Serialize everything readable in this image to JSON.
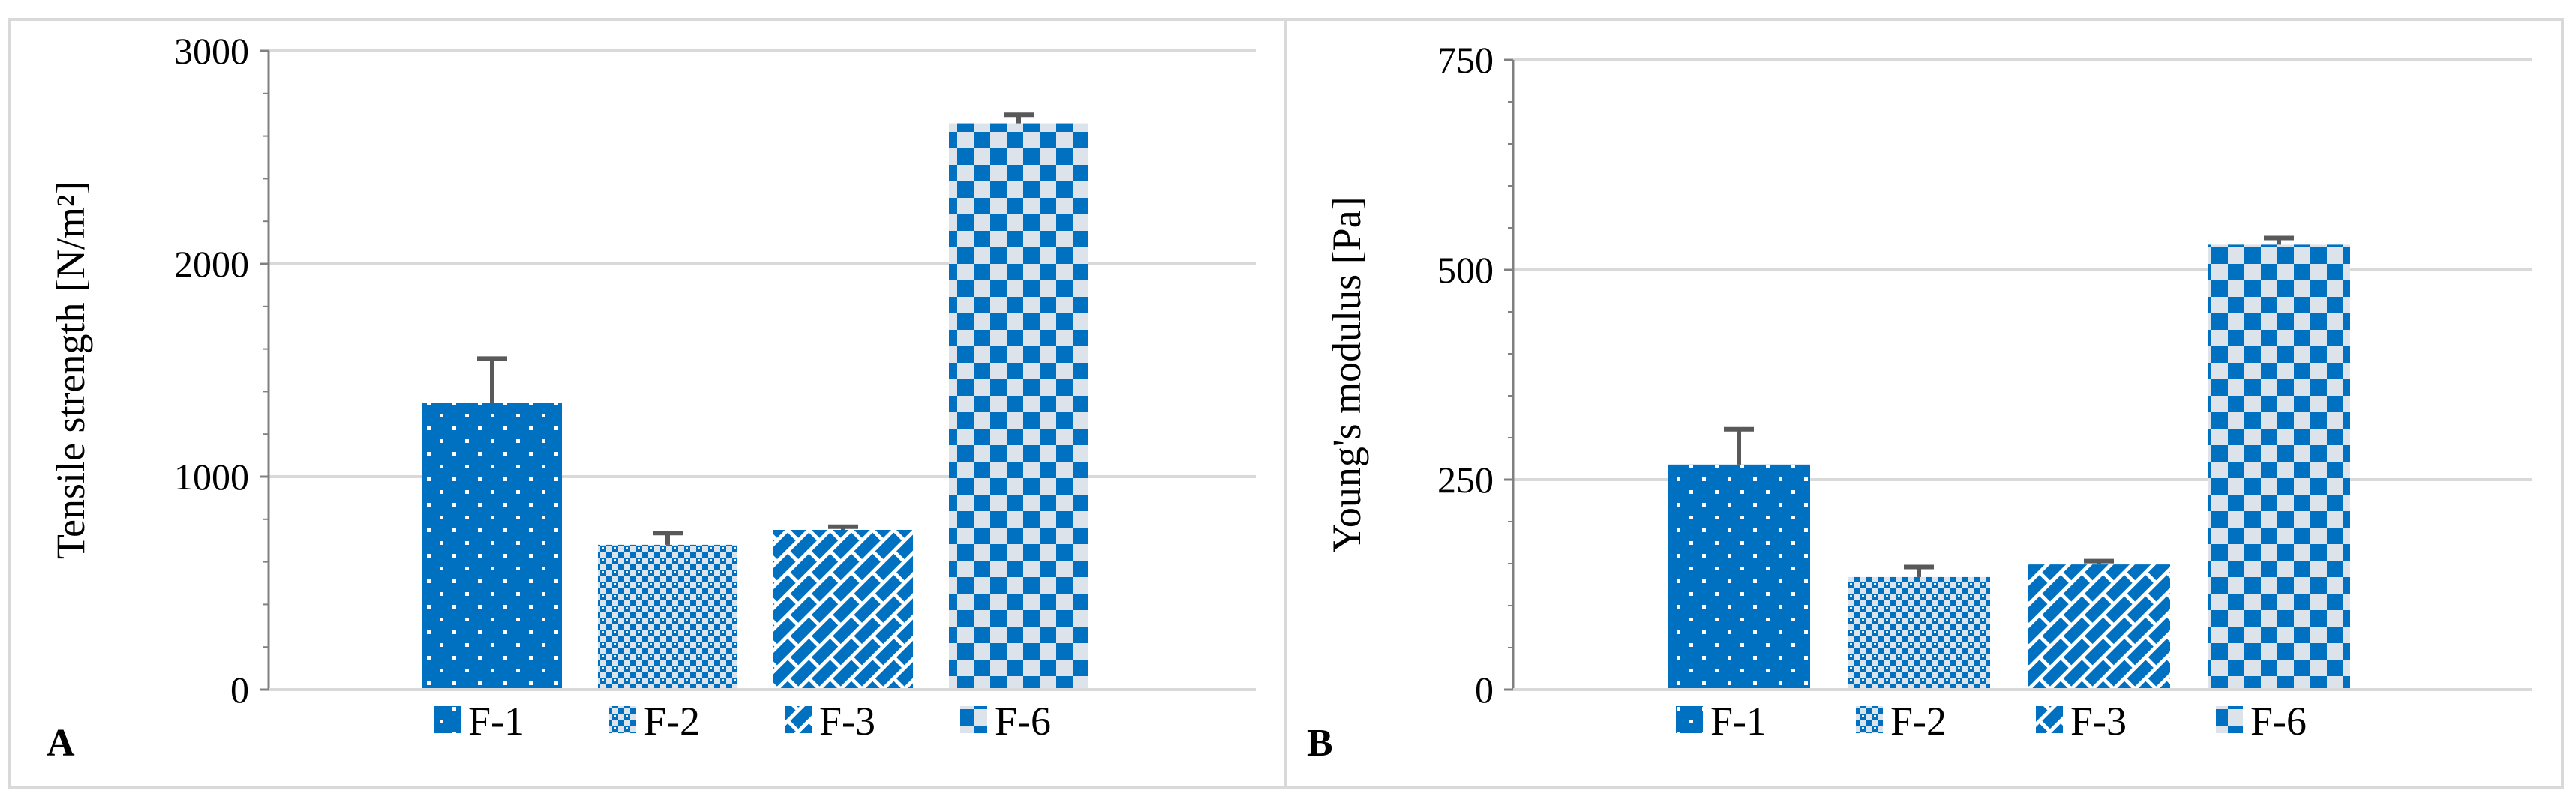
{
  "colors": {
    "bar_blue": "#0070c0",
    "pattern_light": "#dde3ea",
    "gridline": "#d9d9d9",
    "axis": "#808080",
    "error_bar": "#595959"
  },
  "chart_data": [
    {
      "type": "bar",
      "panel_label": "A",
      "title": "",
      "xlabel": "",
      "ylabel": "Tensile strength [N/m²]",
      "ylim": [
        0,
        3000
      ],
      "yticks": [
        0,
        1000,
        2000,
        3000
      ],
      "grid": true,
      "legend_position": "bottom",
      "categories": [
        "F-1",
        "F-2",
        "F-3",
        "F-6"
      ],
      "series": [
        {
          "values": [
            1345,
            680,
            750,
            2660
          ],
          "errors": [
            210,
            55,
            15,
            40
          ]
        }
      ],
      "patterns": [
        "dots",
        "checker-small",
        "diagonal-weave",
        "checker-large"
      ]
    },
    {
      "type": "bar",
      "panel_label": "B",
      "title": "",
      "xlabel": "",
      "ylabel": "Young's modulus [Pa]",
      "ylim": [
        0,
        750
      ],
      "yticks": [
        0,
        250,
        500,
        750
      ],
      "grid": true,
      "legend_position": "bottom",
      "categories": [
        "F-1",
        "F-2",
        "F-3",
        "F-6"
      ],
      "series": [
        {
          "values": [
            268,
            134,
            149,
            530
          ],
          "errors": [
            42,
            12,
            4,
            8
          ]
        }
      ],
      "patterns": [
        "dots",
        "checker-small",
        "diagonal-weave",
        "checker-large"
      ]
    }
  ]
}
